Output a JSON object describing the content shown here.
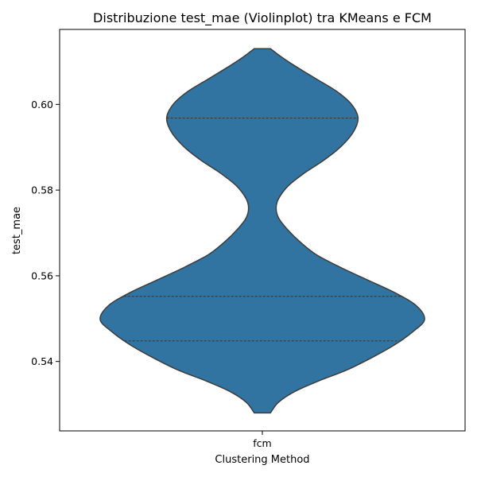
{
  "chart_data": {
    "type": "violin",
    "title": "Distribuzione test_mae (Violinplot) tra KMeans e FCM",
    "xlabel": "Clustering Method",
    "ylabel": "test_mae",
    "categories": [
      "fcm"
    ],
    "ylim": [
      0.5238,
      0.6175
    ],
    "yticks": [
      0.54,
      0.56,
      0.58,
      0.6
    ],
    "ytick_labels": [
      "0.54",
      "0.56",
      "0.58",
      "0.60"
    ],
    "grid": false,
    "legend": "none",
    "color": "#3274a1",
    "series": [
      {
        "category": "fcm",
        "min": 0.528,
        "max": 0.613,
        "quartiles": [
          0.5448,
          0.5552,
          0.5968
        ],
        "density_profile": [
          [
            0.528,
            0.05
          ],
          [
            0.5305,
            0.1
          ],
          [
            0.533,
            0.2
          ],
          [
            0.5355,
            0.35
          ],
          [
            0.538,
            0.52
          ],
          [
            0.541,
            0.68
          ],
          [
            0.544,
            0.82
          ],
          [
            0.547,
            0.93
          ],
          [
            0.5498,
            1.0
          ],
          [
            0.553,
            0.95
          ],
          [
            0.556,
            0.82
          ],
          [
            0.559,
            0.65
          ],
          [
            0.562,
            0.48
          ],
          [
            0.565,
            0.33
          ],
          [
            0.568,
            0.23
          ],
          [
            0.571,
            0.15
          ],
          [
            0.5735,
            0.1
          ],
          [
            0.5758,
            0.085
          ],
          [
            0.578,
            0.1
          ],
          [
            0.581,
            0.16
          ],
          [
            0.584,
            0.26
          ],
          [
            0.587,
            0.38
          ],
          [
            0.59,
            0.48
          ],
          [
            0.5935,
            0.56
          ],
          [
            0.5968,
            0.59
          ],
          [
            0.6,
            0.55
          ],
          [
            0.603,
            0.46
          ],
          [
            0.606,
            0.33
          ],
          [
            0.609,
            0.2
          ],
          [
            0.611,
            0.12
          ],
          [
            0.613,
            0.05
          ]
        ]
      }
    ]
  }
}
